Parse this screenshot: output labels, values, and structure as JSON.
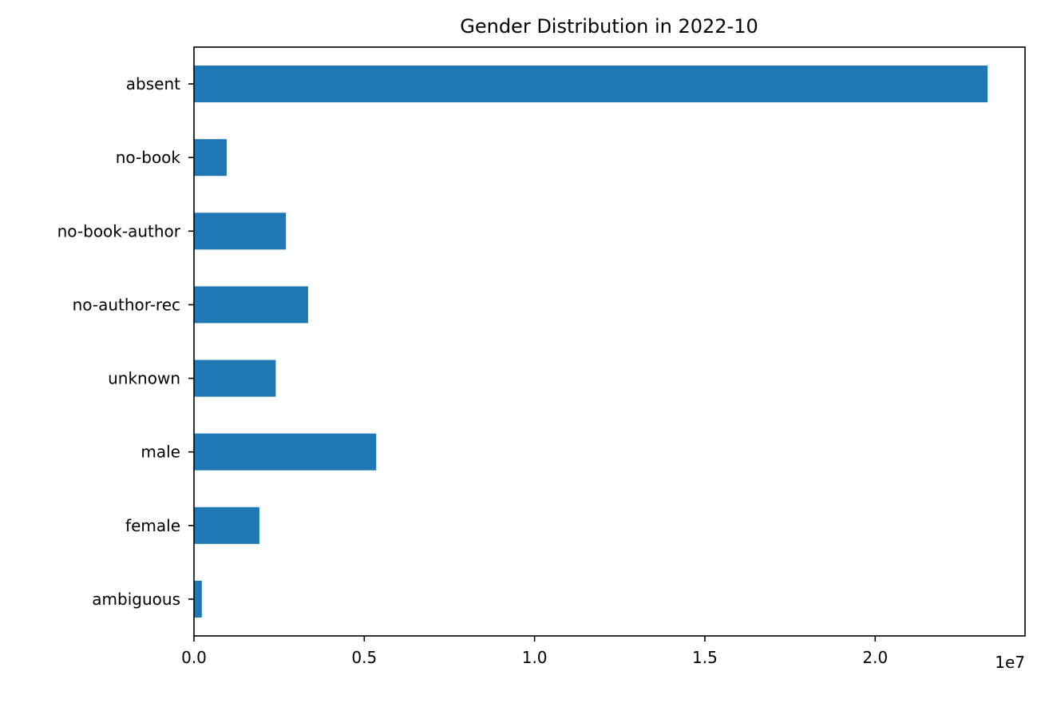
{
  "chart_data": {
    "type": "bar",
    "orientation": "horizontal",
    "title": "Gender Distribution in 2022-10",
    "xlabel": "",
    "ylabel": "",
    "categories": [
      "absent",
      "no-book",
      "no-book-author",
      "no-author-rec",
      "unknown",
      "male",
      "female",
      "ambiguous"
    ],
    "values": [
      23300000,
      960000,
      2700000,
      3350000,
      2400000,
      5350000,
      1920000,
      230000
    ],
    "xlim": [
      0,
      24400000
    ],
    "x_ticks": [
      0,
      5000000,
      10000000,
      15000000,
      20000000
    ],
    "x_tick_labels": [
      "0.0",
      "0.5",
      "1.0",
      "1.5",
      "2.0"
    ],
    "x_offset_label": "1e7",
    "bar_color": "#1f77b4",
    "grid": false,
    "legend": "none"
  }
}
